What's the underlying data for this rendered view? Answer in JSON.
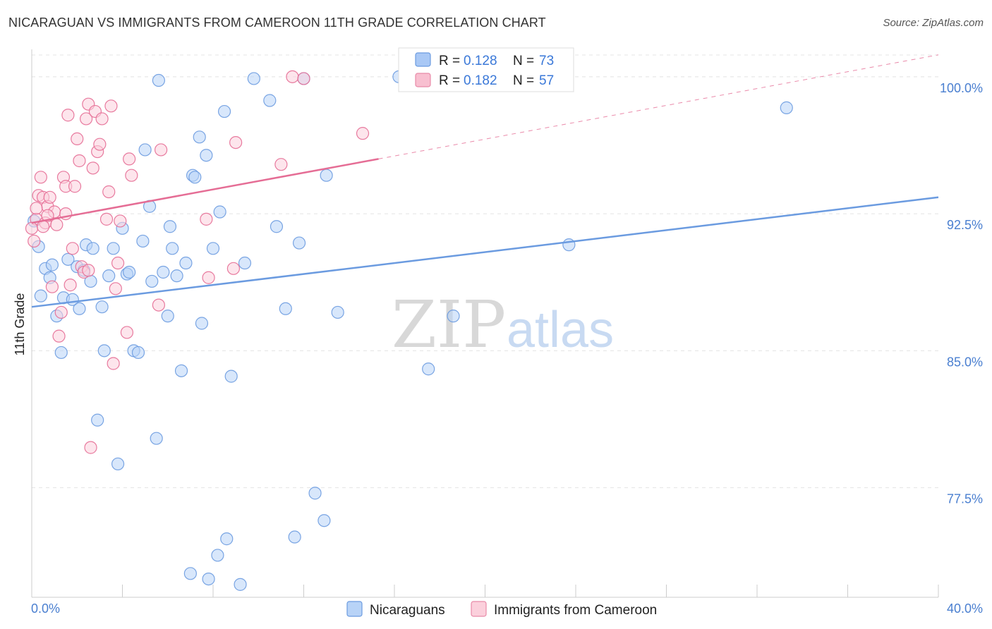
{
  "title": "NICARAGUAN VS IMMIGRANTS FROM CAMEROON 11TH GRADE CORRELATION CHART",
  "source": "Source: ZipAtlas.com",
  "watermark": {
    "zip": "ZIP",
    "atlas": "atlas"
  },
  "legend_top": [
    {
      "r_label": "R = ",
      "r_value": "0.128",
      "n_label": "N = ",
      "n_value": "73",
      "fill": "#a9c8f5",
      "stroke": "#6b9be0"
    },
    {
      "r_label": "R = ",
      "r_value": "0.182",
      "n_label": "N = ",
      "n_value": "57",
      "fill": "#f8bfd0",
      "stroke": "#e88aa8"
    }
  ],
  "legend_bottom": [
    {
      "label": "Nicaraguans",
      "fill": "#b8d3f7",
      "stroke": "#6b9be0"
    },
    {
      "label": "Immigrants from Cameroon",
      "fill": "#fbd0dc",
      "stroke": "#e88aa8"
    }
  ],
  "chart_data": {
    "type": "scatter",
    "xlabel": "",
    "ylabel": "11th Grade",
    "xlim": [
      0,
      40
    ],
    "ylim": [
      71.5,
      101.5
    ],
    "x_tick_labels": [
      "0.0%",
      "40.0%"
    ],
    "y_ticks": [
      77.5,
      85.0,
      92.5,
      100.0
    ],
    "y_tick_labels": [
      "77.5%",
      "85.0%",
      "92.5%",
      "100.0%"
    ],
    "series": [
      {
        "name": "Nicaraguans",
        "color": "#6b9be0",
        "fill": "#b8d3f7",
        "trend": {
          "x": [
            0,
            40
          ],
          "y": [
            87.4,
            93.4
          ]
        },
        "points": [
          [
            0.3,
            90.7
          ],
          [
            0.4,
            88.0
          ],
          [
            0.6,
            89.5
          ],
          [
            0.8,
            89.0
          ],
          [
            0.9,
            89.7
          ],
          [
            1.1,
            86.9
          ],
          [
            1.3,
            84.9
          ],
          [
            1.4,
            87.9
          ],
          [
            1.6,
            90.0
          ],
          [
            1.8,
            87.8
          ],
          [
            2.0,
            89.6
          ],
          [
            2.1,
            87.3
          ],
          [
            2.3,
            89.4
          ],
          [
            2.4,
            90.8
          ],
          [
            2.6,
            88.8
          ],
          [
            2.7,
            90.6
          ],
          [
            2.9,
            81.2
          ],
          [
            3.1,
            87.4
          ],
          [
            3.2,
            85.0
          ],
          [
            3.4,
            89.1
          ],
          [
            3.6,
            90.6
          ],
          [
            3.8,
            78.8
          ],
          [
            4.0,
            91.7
          ],
          [
            4.2,
            89.2
          ],
          [
            4.3,
            89.3
          ],
          [
            4.5,
            85.0
          ],
          [
            4.7,
            84.9
          ],
          [
            4.9,
            91.0
          ],
          [
            5.0,
            96.0
          ],
          [
            5.2,
            92.9
          ],
          [
            5.3,
            88.8
          ],
          [
            5.5,
            80.2
          ],
          [
            5.6,
            99.8
          ],
          [
            5.8,
            89.3
          ],
          [
            6.0,
            86.9
          ],
          [
            6.1,
            91.8
          ],
          [
            6.2,
            90.6
          ],
          [
            6.4,
            89.1
          ],
          [
            6.6,
            83.9
          ],
          [
            6.8,
            89.8
          ],
          [
            7.0,
            72.8
          ],
          [
            7.1,
            94.6
          ],
          [
            7.2,
            94.5
          ],
          [
            7.4,
            96.7
          ],
          [
            7.5,
            86.5
          ],
          [
            7.7,
            95.7
          ],
          [
            7.8,
            72.5
          ],
          [
            8.0,
            90.6
          ],
          [
            8.2,
            73.8
          ],
          [
            8.3,
            92.6
          ],
          [
            8.5,
            98.1
          ],
          [
            8.6,
            74.7
          ],
          [
            8.8,
            83.6
          ],
          [
            9.2,
            72.2
          ],
          [
            9.4,
            89.8
          ],
          [
            9.8,
            99.9
          ],
          [
            10.5,
            98.7
          ],
          [
            10.8,
            91.8
          ],
          [
            11.2,
            87.3
          ],
          [
            11.6,
            74.8
          ],
          [
            11.8,
            90.9
          ],
          [
            12.0,
            99.9
          ],
          [
            12.5,
            77.2
          ],
          [
            12.9,
            75.7
          ],
          [
            13.0,
            94.6
          ],
          [
            13.5,
            87.1
          ],
          [
            16.2,
            100.0
          ],
          [
            17.5,
            84.0
          ],
          [
            18.6,
            86.9
          ],
          [
            19.2,
            99.9
          ],
          [
            23.7,
            90.8
          ],
          [
            33.3,
            98.3
          ],
          [
            0.1,
            92.1
          ]
        ]
      },
      {
        "name": "Immigrants from Cameroon",
        "color": "#e56d95",
        "fill": "#fbd0dc",
        "trend": {
          "x": [
            0,
            15.3
          ],
          "y": [
            92.0,
            95.5
          ]
        },
        "trend_dashed": {
          "x": [
            15.3,
            40
          ],
          "y": [
            95.5,
            101.2
          ]
        },
        "points": [
          [
            0.1,
            91.0
          ],
          [
            0.2,
            92.2
          ],
          [
            0.3,
            93.5
          ],
          [
            0.4,
            94.5
          ],
          [
            0.5,
            93.4
          ],
          [
            0.6,
            92.0
          ],
          [
            0.7,
            92.9
          ],
          [
            0.8,
            93.4
          ],
          [
            0.9,
            88.5
          ],
          [
            1.0,
            92.6
          ],
          [
            1.1,
            91.9
          ],
          [
            1.2,
            85.8
          ],
          [
            1.3,
            87.1
          ],
          [
            1.4,
            94.5
          ],
          [
            1.5,
            94.0
          ],
          [
            1.6,
            97.9
          ],
          [
            1.7,
            88.6
          ],
          [
            1.8,
            90.6
          ],
          [
            1.9,
            94.0
          ],
          [
            2.0,
            96.6
          ],
          [
            2.1,
            95.4
          ],
          [
            2.2,
            89.6
          ],
          [
            2.3,
            89.3
          ],
          [
            2.4,
            97.7
          ],
          [
            2.5,
            98.5
          ],
          [
            2.6,
            79.7
          ],
          [
            2.7,
            95.0
          ],
          [
            2.8,
            98.1
          ],
          [
            2.9,
            95.9
          ],
          [
            3.0,
            96.3
          ],
          [
            3.1,
            97.7
          ],
          [
            3.3,
            92.2
          ],
          [
            3.4,
            93.7
          ],
          [
            3.5,
            98.4
          ],
          [
            3.6,
            84.3
          ],
          [
            3.7,
            88.4
          ],
          [
            3.8,
            89.8
          ],
          [
            3.9,
            92.1
          ],
          [
            4.2,
            86.0
          ],
          [
            4.3,
            95.5
          ],
          [
            4.4,
            94.6
          ],
          [
            5.6,
            87.5
          ],
          [
            5.7,
            96.0
          ],
          [
            7.7,
            92.2
          ],
          [
            7.8,
            89.0
          ],
          [
            8.9,
            89.5
          ],
          [
            9.0,
            96.4
          ],
          [
            11.0,
            95.2
          ],
          [
            11.5,
            100.0
          ],
          [
            12.0,
            99.9
          ],
          [
            14.6,
            96.9
          ],
          [
            0.0,
            91.7
          ],
          [
            0.2,
            92.8
          ],
          [
            0.5,
            91.8
          ],
          [
            0.7,
            92.4
          ],
          [
            1.5,
            92.5
          ],
          [
            2.5,
            89.4
          ]
        ]
      }
    ]
  }
}
